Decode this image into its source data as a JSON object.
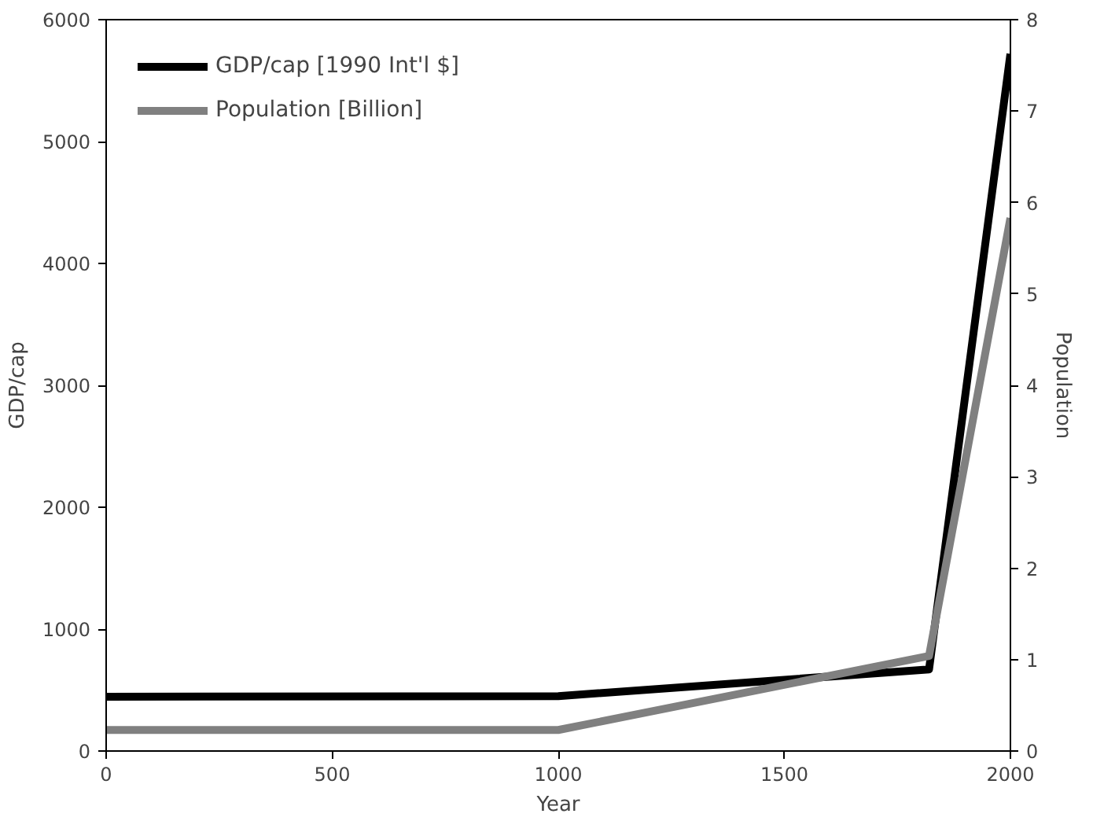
{
  "chart_data": {
    "type": "line",
    "xlabel": "Year",
    "ylabel": "GDP/cap",
    "y2label": "Population",
    "xlim": [
      0,
      2000
    ],
    "xticks": [
      0,
      500,
      1000,
      1500,
      2000
    ],
    "ylim": [
      0,
      6000
    ],
    "yticks": [
      0,
      1000,
      2000,
      3000,
      4000,
      5000,
      6000
    ],
    "y2lim": [
      0,
      8
    ],
    "y2ticks": [
      0,
      1,
      2,
      3,
      4,
      5,
      6,
      7,
      8
    ],
    "x": [
      0,
      1000,
      1820,
      2000
    ],
    "series": [
      {
        "name": "GDP/cap [1990 Int'l $]",
        "color": "#000000",
        "values": [
          445,
          450,
          670,
          5720
        ]
      },
      {
        "name": "Population [Billion]",
        "color": "#808080",
        "values": [
          0.23,
          0.23,
          1.04,
          5.83
        ],
        "axis": "y2"
      }
    ],
    "grid": false,
    "legend": "top left",
    "line_style": "solid"
  }
}
